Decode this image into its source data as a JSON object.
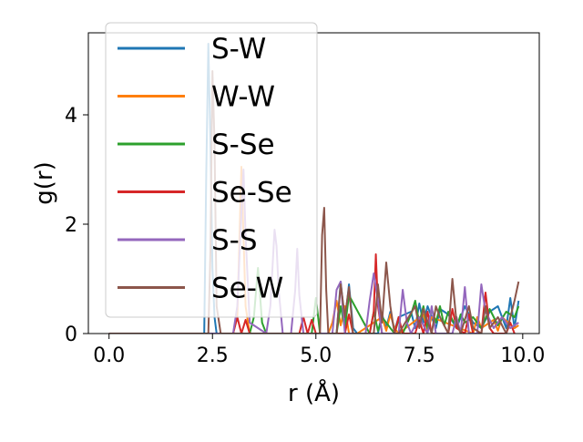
{
  "chart_data": {
    "type": "line",
    "title": "",
    "xlabel": "r (Å)",
    "ylabel": "g(r)",
    "xlim": [
      -0.5,
      10.4
    ],
    "ylim": [
      0,
      5.5
    ],
    "xticks": [
      0.0,
      2.5,
      5.0,
      7.5,
      10.0
    ],
    "xtick_labels": [
      "0.0",
      "2.5",
      "5.0",
      "7.5",
      "10.0"
    ],
    "yticks": [
      0,
      2,
      4
    ],
    "ytick_labels": [
      "0",
      "2",
      "4"
    ],
    "grid": false,
    "legend_position": "top-left",
    "series": [
      {
        "name": "S-W",
        "color": "#1f77b4",
        "x": [
          0.0,
          2.25,
          2.3,
          2.35,
          2.4,
          2.45,
          2.5,
          2.55,
          2.6,
          2.65,
          5.5,
          5.6,
          5.7,
          5.8,
          5.9,
          6.0,
          6.5,
          6.6,
          6.7,
          6.8,
          6.9,
          7.0,
          7.3,
          7.4,
          7.5,
          7.6,
          7.7,
          7.8,
          7.9,
          8.0,
          8.2,
          8.4,
          8.6,
          8.8,
          9.0,
          9.2,
          9.4,
          9.6,
          9.7,
          9.8,
          9.9
        ],
        "y": [
          0,
          0,
          0,
          2.9,
          5.3,
          3.5,
          1.2,
          0.3,
          0,
          0,
          0,
          0.95,
          0.2,
          0.9,
          0.1,
          0,
          0,
          0.35,
          0.1,
          0.4,
          0.05,
          0.3,
          0.4,
          0.1,
          0.55,
          0.2,
          0.5,
          0.3,
          0.1,
          0.45,
          0.35,
          0.1,
          0.5,
          0.2,
          0.1,
          0.4,
          0.5,
          0.1,
          0.65,
          0.1,
          0.6
        ]
      },
      {
        "name": "W-W",
        "color": "#ff7f0e",
        "x": [
          0.0,
          3.0,
          3.1,
          3.2,
          3.3,
          3.4,
          5.3,
          5.4,
          5.5,
          5.6,
          5.7,
          5.8,
          6.0,
          6.6,
          6.7,
          6.8,
          6.9,
          7.0,
          7.6,
          7.7,
          7.8,
          8.8,
          8.9,
          9.0,
          9.3,
          9.4,
          9.5,
          9.8,
          9.9
        ],
        "y": [
          0,
          0,
          0.3,
          3.05,
          0.5,
          0,
          0,
          0.2,
          0.6,
          0.15,
          0.5,
          0,
          0,
          0.3,
          0.05,
          0.35,
          0.1,
          0,
          0.35,
          0.05,
          0.3,
          0,
          0.3,
          0.1,
          0.25,
          0.05,
          0.3,
          0.1,
          0.15
        ]
      },
      {
        "name": "S-Se",
        "color": "#2ca02c",
        "x": [
          0.0,
          3.4,
          3.5,
          3.6,
          3.7,
          3.8,
          4.9,
          5.0,
          5.1,
          5.5,
          5.6,
          5.7,
          5.8,
          6.3,
          6.4,
          6.5,
          6.6,
          6.9,
          7.0,
          7.1,
          7.3,
          7.4,
          7.5,
          7.6,
          7.7,
          7.8,
          7.9,
          8.0,
          8.1,
          8.2,
          8.4,
          8.5,
          8.6,
          8.8,
          9.0,
          9.2,
          9.4,
          9.6,
          9.8,
          9.9
        ],
        "y": [
          0,
          0,
          0.3,
          1.2,
          0.2,
          0,
          0,
          0.65,
          0,
          0,
          0.5,
          0.1,
          0.7,
          0,
          0.4,
          0.05,
          0.3,
          0,
          0.25,
          0,
          0.35,
          0.6,
          0.2,
          0.5,
          0.1,
          0.45,
          0.2,
          0.5,
          0.15,
          0.4,
          0.1,
          0.35,
          0.2,
          0.3,
          0.1,
          0.45,
          0.15,
          0.4,
          0.3,
          0.5
        ]
      },
      {
        "name": "Se-Se",
        "color": "#d62728",
        "x": [
          0.0,
          3.0,
          3.1,
          3.2,
          3.3,
          3.4,
          3.5,
          4.6,
          4.7,
          4.8,
          4.9,
          5.0,
          5.1,
          5.7,
          5.8,
          5.9,
          6.3,
          6.4,
          6.45,
          6.5,
          6.6,
          6.9,
          7.0,
          7.1,
          7.4,
          7.5,
          7.6,
          7.7,
          7.8,
          8.2,
          8.3,
          8.4,
          8.6,
          8.7,
          8.8,
          9.0,
          9.1,
          9.2,
          9.3,
          9.6,
          9.7,
          9.8
        ],
        "y": [
          0,
          0,
          0.3,
          0,
          0.25,
          0,
          0,
          0,
          0.3,
          0,
          0.25,
          0,
          0,
          0,
          0.35,
          0,
          0,
          0.4,
          1.45,
          0.5,
          0,
          0,
          0.3,
          0,
          0,
          0.25,
          0,
          0.4,
          0,
          0,
          0.45,
          0.1,
          0,
          0.35,
          0,
          0,
          0.75,
          0.1,
          0,
          0,
          0.2,
          0
        ]
      },
      {
        "name": "S-S",
        "color": "#9467bd",
        "x": [
          0.0,
          3.0,
          3.1,
          3.2,
          3.25,
          3.3,
          3.4,
          3.8,
          3.9,
          4.0,
          4.05,
          4.1,
          4.2,
          4.4,
          4.5,
          4.55,
          4.6,
          4.7,
          5.4,
          5.5,
          5.6,
          5.7,
          6.2,
          6.3,
          6.4,
          6.5,
          6.6,
          7.0,
          7.1,
          7.2,
          7.3,
          7.5,
          7.7,
          7.8,
          7.9,
          8.3,
          8.4,
          8.5,
          8.6,
          8.7,
          8.9,
          9.0,
          9.1,
          9.3,
          9.5,
          9.7,
          9.9
        ],
        "y": [
          0,
          0,
          0.5,
          2.2,
          3.0,
          1.8,
          0.2,
          0,
          0.5,
          1.9,
          1.6,
          0.8,
          0,
          0,
          0.8,
          1.55,
          0.7,
          0,
          0,
          0.8,
          0.95,
          0,
          0,
          0.6,
          1.1,
          0.6,
          0,
          0,
          0.8,
          0.2,
          0,
          0.3,
          0,
          0.5,
          0,
          0,
          0.3,
          0,
          0.85,
          0,
          0,
          0.9,
          0.4,
          0.1,
          0.3,
          0.1,
          0.2
        ]
      },
      {
        "name": "Se-W",
        "color": "#8c564b",
        "x": [
          0.0,
          2.4,
          2.45,
          2.5,
          2.55,
          2.6,
          2.7,
          5.1,
          5.15,
          5.2,
          5.25,
          5.3,
          5.5,
          5.6,
          5.7,
          5.8,
          5.9,
          6.4,
          6.5,
          6.6,
          6.7,
          6.8,
          6.9,
          7.0,
          7.4,
          7.5,
          7.6,
          7.8,
          7.9,
          8.0,
          8.2,
          8.3,
          8.4,
          8.5,
          8.7,
          8.8,
          9.0,
          9.1,
          9.2,
          9.4,
          9.6,
          9.8,
          9.9
        ],
        "y": [
          0,
          0,
          1.5,
          4.8,
          3.5,
          0.5,
          0,
          0,
          1.8,
          2.3,
          0.8,
          0,
          0,
          0.9,
          0.3,
          0.85,
          0,
          0,
          0.9,
          0.2,
          1.3,
          0.5,
          0,
          0,
          0.5,
          0.1,
          0.45,
          0,
          0.5,
          0.3,
          0,
          1.0,
          0.2,
          0,
          0.5,
          0.1,
          0,
          0.5,
          0.1,
          0.3,
          0,
          0.6,
          0.95
        ]
      }
    ]
  }
}
